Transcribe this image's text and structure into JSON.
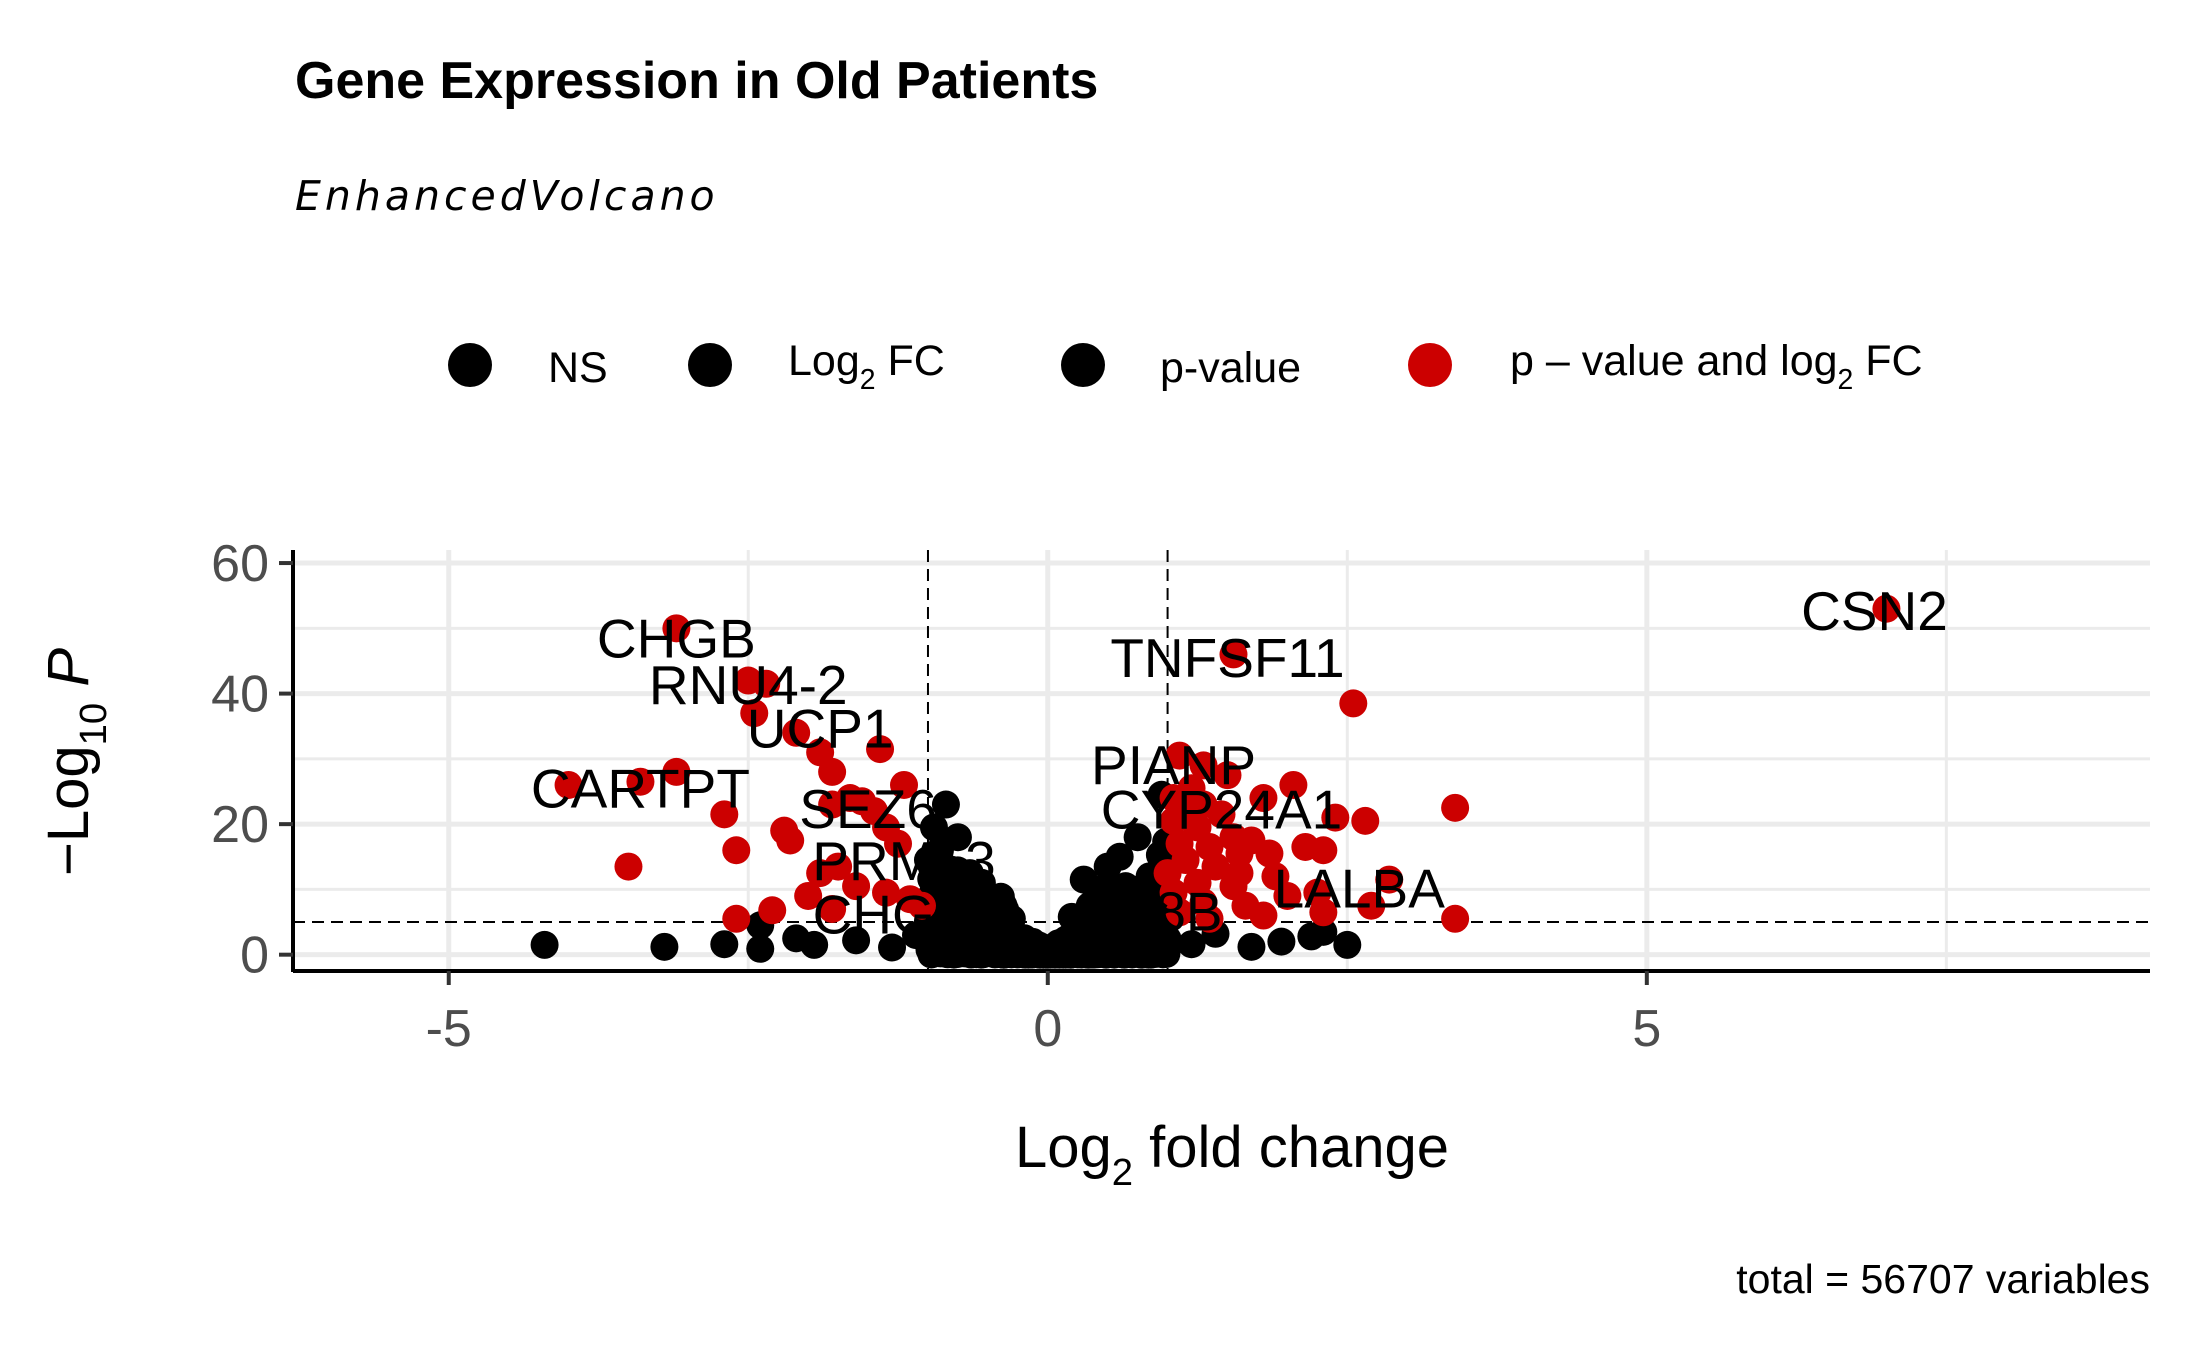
{
  "chart_data": {
    "type": "scatter",
    "title": "Gene Expression in Old Patients",
    "subtitle": "EnhancedVolcano",
    "xlabel": "Log2 fold change",
    "ylabel": "-Log10 P",
    "caption": "total = 56707 variables",
    "xlim": [
      -6.3,
      9.2
    ],
    "ylim": [
      -2.5,
      62
    ],
    "x_ticks": [
      "-5",
      "0",
      "5"
    ],
    "x_tick_values": [
      -5,
      0,
      5
    ],
    "y_ticks": [
      "0",
      "20",
      "40",
      "60"
    ],
    "y_tick_values": [
      0,
      20,
      40,
      60
    ],
    "fc_cutoff": 1,
    "p_cutoff_log10": 5,
    "grid": true,
    "legend_position": "top",
    "legend": [
      {
        "label": "NS",
        "color": "#000000"
      },
      {
        "label_main": "Log",
        "label_sub": "2",
        "label_tail": " FC",
        "color": "#000000"
      },
      {
        "label": "p-value",
        "color": "#000000"
      },
      {
        "label_main": "p – value and log",
        "label_sub": "2",
        "label_tail": " FC",
        "color": "#cc0000"
      }
    ],
    "colors": {
      "ns": "#000000",
      "sig": "#cc0000"
    },
    "labels": [
      {
        "text": "CHGB",
        "x": -3.1,
        "y": 48.6
      },
      {
        "text": "RNU4-2",
        "x": -2.5,
        "y": 41.5
      },
      {
        "text": "UCP1",
        "x": -1.9,
        "y": 34.8
      },
      {
        "text": "CARTPT",
        "x": -3.4,
        "y": 25.6
      },
      {
        "text": "SEZ6",
        "x": -1.5,
        "y": 22.5
      },
      {
        "text": "PRM13",
        "x": -1.2,
        "y": 14.5
      },
      {
        "text": "CHGA",
        "x": -1.3,
        "y": 6.3
      },
      {
        "text": "TNFSF11",
        "x": 1.5,
        "y": 45.6
      },
      {
        "text": "PIANP",
        "x": 1.05,
        "y": 29.2
      },
      {
        "text": "CYP24A1",
        "x": 1.45,
        "y": 22.4
      },
      {
        "text": "LALBA",
        "x": 2.6,
        "y": 10.3
      },
      {
        "text": "G8B",
        "x": 1.0,
        "y": 6.8
      },
      {
        "text": "CSN2",
        "x": 6.9,
        "y": 52.8
      }
    ],
    "sig_points": [
      [
        7.0,
        53
      ],
      [
        -3.1,
        50
      ],
      [
        1.55,
        46
      ],
      [
        -2.5,
        42
      ],
      [
        -2.35,
        41.5
      ],
      [
        -2.45,
        37
      ],
      [
        2.55,
        38.5
      ],
      [
        -2.1,
        34
      ],
      [
        -1.4,
        31.5
      ],
      [
        -1.9,
        31
      ],
      [
        -1.8,
        28
      ],
      [
        -3.1,
        28
      ],
      [
        -4.0,
        26
      ],
      [
        -3.4,
        26.5
      ],
      [
        -1.2,
        26
      ],
      [
        -1.65,
        24
      ],
      [
        -1.55,
        23.5
      ],
      [
        -1.45,
        22
      ],
      [
        -1.8,
        23
      ],
      [
        -1.35,
        19.5
      ],
      [
        -2.7,
        21.5
      ],
      [
        -2.2,
        19
      ],
      [
        -2.15,
        17.5
      ],
      [
        -2.6,
        16
      ],
      [
        -3.5,
        13.5
      ],
      [
        -1.25,
        17
      ],
      [
        -1.75,
        13.5
      ],
      [
        -1.9,
        12.5
      ],
      [
        -1.6,
        10.5
      ],
      [
        -2.0,
        9
      ],
      [
        -1.35,
        9.5
      ],
      [
        -1.8,
        7
      ],
      [
        -2.6,
        5.5
      ],
      [
        -2.3,
        6.8
      ],
      [
        -1.15,
        8.5
      ],
      [
        -1.05,
        7.5
      ],
      [
        1.1,
        30.5
      ],
      [
        1.3,
        29
      ],
      [
        1.5,
        27.5
      ],
      [
        1.2,
        25.5
      ],
      [
        1.05,
        24
      ],
      [
        1.3,
        23
      ],
      [
        1.45,
        21.5
      ],
      [
        1.8,
        24
      ],
      [
        1.05,
        20.5
      ],
      [
        1.25,
        19.5
      ],
      [
        1.55,
        18
      ],
      [
        1.1,
        17
      ],
      [
        1.35,
        16.5
      ],
      [
        1.7,
        17.5
      ],
      [
        1.85,
        15.5
      ],
      [
        2.05,
        26
      ],
      [
        2.4,
        21
      ],
      [
        2.65,
        20.5
      ],
      [
        2.15,
        16.5
      ],
      [
        2.3,
        16
      ],
      [
        1.15,
        14.5
      ],
      [
        1.4,
        13.5
      ],
      [
        1.6,
        12.5
      ],
      [
        1.9,
        12
      ],
      [
        1.25,
        11
      ],
      [
        1.55,
        10.5
      ],
      [
        1.05,
        9.5
      ],
      [
        2.0,
        9
      ],
      [
        2.25,
        9.5
      ],
      [
        2.85,
        11.5
      ],
      [
        3.4,
        22.5
      ],
      [
        1.3,
        8
      ],
      [
        1.65,
        7.5
      ],
      [
        2.7,
        7.5
      ],
      [
        3.4,
        5.5
      ],
      [
        1.1,
        6.5
      ],
      [
        1.8,
        6
      ],
      [
        1.35,
        5.5
      ],
      [
        2.3,
        6.5
      ],
      [
        1.0,
        12.5
      ],
      [
        1.2,
        21.5
      ],
      [
        1.6,
        15.5
      ]
    ],
    "ns_points": [
      [
        0.95,
        24.5
      ],
      [
        -0.85,
        23
      ],
      [
        -0.95,
        19.5
      ],
      [
        -0.75,
        18
      ],
      [
        -0.9,
        16
      ],
      [
        -1.0,
        14.5
      ],
      [
        -0.8,
        13
      ],
      [
        -0.65,
        12.5
      ],
      [
        -0.55,
        11
      ],
      [
        -0.95,
        10.5
      ],
      [
        -0.7,
        9.5
      ],
      [
        -0.85,
        8
      ],
      [
        -0.6,
        7.5
      ],
      [
        -0.45,
        6.5
      ],
      [
        -0.3,
        5.5
      ],
      [
        0.75,
        18
      ],
      [
        0.6,
        15
      ],
      [
        0.5,
        13.5
      ],
      [
        0.85,
        12
      ],
      [
        0.3,
        11.5
      ],
      [
        0.65,
        10.5
      ],
      [
        0.45,
        9
      ],
      [
        0.9,
        8.5
      ],
      [
        0.35,
        7.5
      ],
      [
        0.7,
        6.5
      ],
      [
        0.2,
        5.8
      ],
      [
        -4.2,
        1.5
      ],
      [
        -3.2,
        1.2
      ],
      [
        -2.7,
        1.6
      ],
      [
        -2.4,
        0.9
      ],
      [
        -2.1,
        2.5
      ],
      [
        -2.4,
        4.5
      ],
      [
        -1.95,
        1.5
      ],
      [
        -1.6,
        2.2
      ],
      [
        -1.3,
        1.1
      ],
      [
        -1.1,
        3.0
      ],
      [
        -0.9,
        1.8
      ],
      [
        2.5,
        1.5
      ],
      [
        2.2,
        2.8
      ],
      [
        1.95,
        2.0
      ],
      [
        1.7,
        1.2
      ],
      [
        1.4,
        3.2
      ],
      [
        1.2,
        1.6
      ],
      [
        1.0,
        2.4
      ],
      [
        0.8,
        1.0
      ],
      [
        2.3,
        3.5
      ]
    ]
  }
}
